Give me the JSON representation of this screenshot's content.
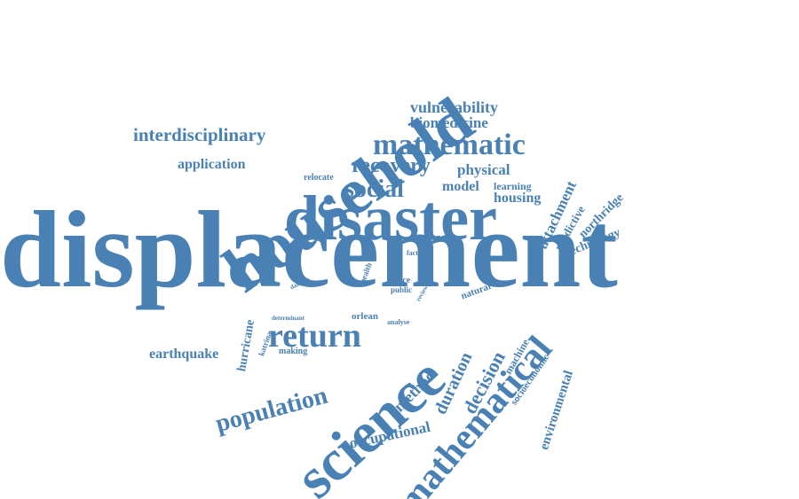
{
  "color": "#4a81b4",
  "words": [
    {
      "key": "displacement",
      "text": "displacement"
    },
    {
      "key": "household",
      "text": "household"
    },
    {
      "key": "disaster",
      "text": "disaster"
    },
    {
      "key": "science",
      "text": "science"
    },
    {
      "key": "mathematical",
      "text": "mathematical"
    },
    {
      "key": "mathematic",
      "text": "mathematic"
    },
    {
      "key": "return",
      "text": "return"
    },
    {
      "key": "social",
      "text": "social"
    },
    {
      "key": "recovery",
      "text": "recovery"
    },
    {
      "key": "population",
      "text": "population"
    },
    {
      "key": "interdisciplinary",
      "text": "interdisciplinary"
    },
    {
      "key": "vulnerability",
      "text": "vulnerability"
    },
    {
      "key": "biomedicine",
      "text": "biomedicine"
    },
    {
      "key": "application",
      "text": "application"
    },
    {
      "key": "physical",
      "text": "physical"
    },
    {
      "key": "model",
      "text": "model"
    },
    {
      "key": "relocate",
      "text": "relocate"
    },
    {
      "key": "learning",
      "text": "learning"
    },
    {
      "key": "housing",
      "text": "housing"
    },
    {
      "key": "attachment",
      "text": "attachment"
    },
    {
      "key": "predictive",
      "text": "predictive"
    },
    {
      "key": "northridge",
      "text": "northridge"
    },
    {
      "key": "technology",
      "text": "technology"
    },
    {
      "key": "earthquake",
      "text": "earthquake"
    },
    {
      "key": "hurricane",
      "text": "hurricane"
    },
    {
      "key": "katrina",
      "text": "katrina"
    },
    {
      "key": "making",
      "text": "making"
    },
    {
      "key": "determinant",
      "text": "determinant"
    },
    {
      "key": "orlean",
      "text": "orlean"
    },
    {
      "key": "analyse",
      "text": "analyse"
    },
    {
      "key": "method",
      "text": "method"
    },
    {
      "key": "duration",
      "text": "duration"
    },
    {
      "key": "decision",
      "text": "decision"
    },
    {
      "key": "machine",
      "text": "machine"
    },
    {
      "key": "occupational",
      "text": "occupational"
    },
    {
      "key": "socioeconomic",
      "text": "socioeconomic"
    },
    {
      "key": "environmental",
      "text": "environmental"
    },
    {
      "key": "natural",
      "text": "natural"
    },
    {
      "key": "factor",
      "text": "factor"
    },
    {
      "key": "risk",
      "text": "risk"
    },
    {
      "key": "place",
      "text": "place"
    },
    {
      "key": "public",
      "text": "public"
    },
    {
      "key": "health",
      "text": "health"
    },
    {
      "key": "damage",
      "text": "damage"
    },
    {
      "key": "review",
      "text": "review"
    }
  ]
}
